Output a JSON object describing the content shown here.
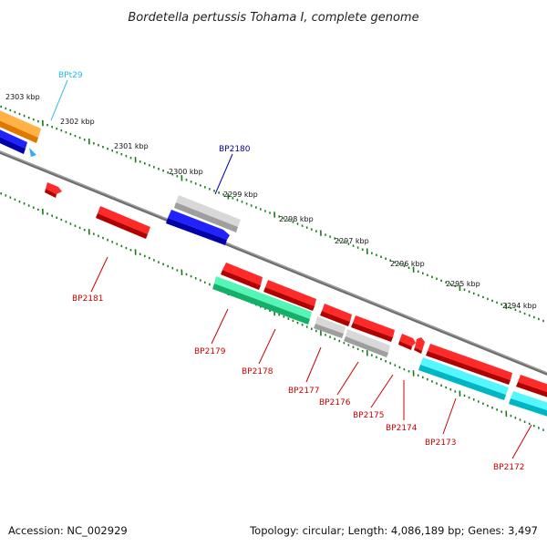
{
  "title": "Bordetella pertussis Tohama I, complete genome",
  "footer": {
    "accession": "Accession: NC_002929",
    "summary": "Topology: circular; Length: 4,086,189 bp; Genes: 3,497"
  },
  "colors": {
    "red": "#e8000b",
    "orange": "#ff9900",
    "blue": "#0000dd",
    "grey": "#bdbdbd",
    "green": "#22e08a",
    "cyan": "#00e5f0",
    "tick": "#1a7a1a",
    "backbone": "#808080",
    "label_red": "#cc0000",
    "label_blue": "#00009a",
    "label_cyan": "#22bbee"
  },
  "ruler_labels": [
    "2303 kbp",
    "2302 kbp",
    "2301 kbp",
    "2300 kbp",
    "2299 kbp",
    "2298 kbp",
    "2297 kbp",
    "2296 kbp",
    "2295 kbp",
    "2294 kbp"
  ],
  "gene_labels": {
    "BPt29": "BPt29",
    "BP2180": "BP2180",
    "BP2181": "BP2181",
    "BP2179": "BP2179",
    "BP2178": "BP2178",
    "BP2177": "BP2177",
    "BP2176": "BP2176",
    "BP2175": "BP2175",
    "BP2174": "BP2174",
    "BP2173": "BP2173",
    "BP2172": "BP2172"
  }
}
